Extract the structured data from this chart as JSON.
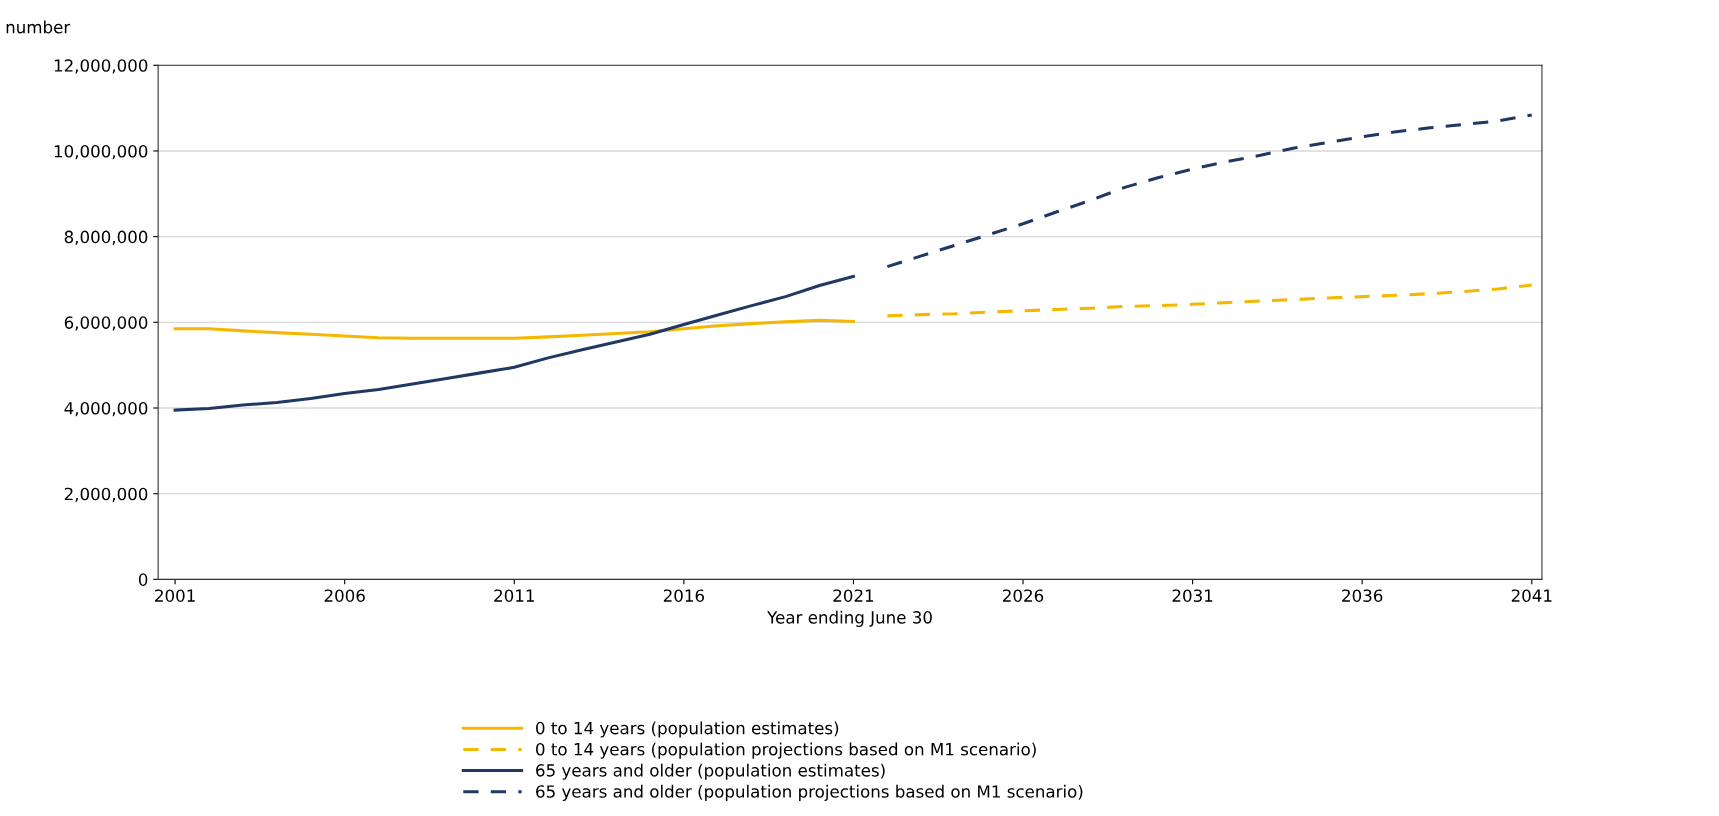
{
  "chart_data": {
    "type": "line",
    "ylabel": "number",
    "xlabel": "Year ending June 30",
    "xlim": [
      2000.5,
      2041.3
    ],
    "xticks": [
      2001,
      2006,
      2011,
      2016,
      2021,
      2026,
      2031,
      2036,
      2041
    ],
    "ylim": [
      0,
      12000000
    ],
    "yticks": [
      {
        "value": 0,
        "label": "0"
      },
      {
        "value": 2000000,
        "label": "2,000,000"
      },
      {
        "value": 4000000,
        "label": "4,000,000"
      },
      {
        "value": 6000000,
        "label": "6,000,000"
      },
      {
        "value": 8000000,
        "label": "8,000,000"
      },
      {
        "value": 10000000,
        "label": "10,000,000"
      },
      {
        "value": 12000000,
        "label": "12,000,000"
      }
    ],
    "grid": "y",
    "legend": "bottom",
    "marker": "none",
    "series": [
      {
        "name": "0 to 14 years (population estimates)",
        "color": "#f5b800",
        "line_style": "solid",
        "x": [
          2001,
          2002,
          2003,
          2004,
          2005,
          2006,
          2007,
          2008,
          2009,
          2010,
          2011,
          2012,
          2013,
          2014,
          2015,
          2016,
          2017,
          2018,
          2019,
          2020,
          2021
        ],
        "values": [
          5850000,
          5850000,
          5800000,
          5760000,
          5720000,
          5680000,
          5640000,
          5630000,
          5630000,
          5630000,
          5630000,
          5660000,
          5700000,
          5740000,
          5780000,
          5850000,
          5920000,
          5970000,
          6010000,
          6050000,
          6020000
        ]
      },
      {
        "name": "0 to 14 years (population projections based on M1 scenario)",
        "color": "#f5b800",
        "line_style": "dashed",
        "x": [
          2022,
          2023,
          2024,
          2025,
          2026,
          2027,
          2028,
          2029,
          2030,
          2031,
          2032,
          2033,
          2034,
          2035,
          2036,
          2037,
          2038,
          2039,
          2040,
          2041
        ],
        "values": [
          6150000,
          6180000,
          6200000,
          6240000,
          6270000,
          6300000,
          6330000,
          6370000,
          6390000,
          6420000,
          6460000,
          6500000,
          6530000,
          6570000,
          6600000,
          6630000,
          6670000,
          6720000,
          6780000,
          6870000
        ]
      },
      {
        "name": "65 years and older (population estimates)",
        "color": "#1f3864",
        "line_style": "solid",
        "x": [
          2001,
          2002,
          2003,
          2004,
          2005,
          2006,
          2007,
          2008,
          2009,
          2010,
          2011,
          2012,
          2013,
          2014,
          2015,
          2016,
          2017,
          2018,
          2019,
          2020,
          2021
        ],
        "values": [
          3950000,
          3990000,
          4070000,
          4130000,
          4220000,
          4340000,
          4430000,
          4560000,
          4690000,
          4820000,
          4950000,
          5170000,
          5360000,
          5540000,
          5720000,
          5950000,
          6170000,
          6390000,
          6600000,
          6860000,
          7070000
        ]
      },
      {
        "name": "65 years and older (population projections based on M1 scenario)",
        "color": "#1f3864",
        "line_style": "dashed",
        "x": [
          2022,
          2023,
          2024,
          2025,
          2026,
          2027,
          2028,
          2029,
          2030,
          2031,
          2032,
          2033,
          2034,
          2035,
          2036,
          2037,
          2038,
          2039,
          2040,
          2041
        ],
        "values": [
          7300000,
          7550000,
          7800000,
          8050000,
          8300000,
          8580000,
          8850000,
          9150000,
          9380000,
          9580000,
          9750000,
          9900000,
          10070000,
          10200000,
          10330000,
          10450000,
          10540000,
          10620000,
          10700000,
          10840000
        ]
      }
    ]
  }
}
